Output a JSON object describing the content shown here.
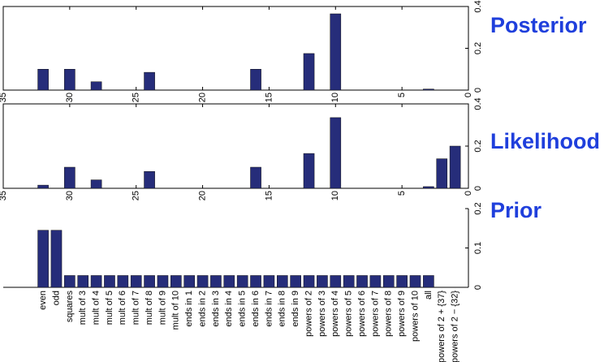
{
  "chart_data": [
    {
      "type": "bar",
      "title": "Posterior",
      "title_color": "#1f3fdc",
      "color": "#262d7a",
      "x": [
        32,
        31,
        30,
        29,
        28,
        27,
        26,
        25,
        24,
        23,
        22,
        21,
        20,
        19,
        18,
        17,
        16,
        15,
        14,
        13,
        12,
        11,
        10,
        9,
        8,
        7,
        6,
        5,
        4,
        3,
        2,
        1
      ],
      "values": [
        0.1,
        0,
        0.1,
        0,
        0.04,
        0,
        0,
        0,
        0.085,
        0,
        0,
        0,
        0,
        0,
        0,
        0,
        0.1,
        0,
        0,
        0,
        0.175,
        0,
        0.365,
        0,
        0,
        0,
        0,
        0,
        0,
        0.005,
        0,
        0
      ],
      "xlim": [
        35,
        0
      ],
      "xticks": [
        35,
        30,
        25,
        20,
        15,
        10,
        5,
        0
      ],
      "ylim": [
        0,
        0.4
      ],
      "yticks": [
        0,
        0.2,
        0.4
      ]
    },
    {
      "type": "bar",
      "title": "Likelihood",
      "title_color": "#1f3fdc",
      "color": "#262d7a",
      "x": [
        32,
        31,
        30,
        29,
        28,
        27,
        26,
        25,
        24,
        23,
        22,
        21,
        20,
        19,
        18,
        17,
        16,
        15,
        14,
        13,
        12,
        11,
        10,
        9,
        8,
        7,
        6,
        5,
        4,
        3,
        2,
        1
      ],
      "values": [
        0.015,
        0,
        0.1,
        0,
        0.04,
        0,
        0,
        0,
        0.08,
        0,
        0,
        0,
        0,
        0,
        0,
        0,
        0.1,
        0,
        0,
        0,
        0.165,
        0,
        0.335,
        0,
        0,
        0,
        0,
        0,
        0,
        0.008,
        0.14,
        0.2
      ],
      "xlim": [
        35,
        0
      ],
      "xticks": [
        35,
        30,
        25,
        20,
        15,
        10,
        5,
        0
      ],
      "ylim": [
        0,
        0.4
      ],
      "yticks": [
        0,
        0.2,
        0.4
      ]
    },
    {
      "type": "bar",
      "title": "Prior",
      "title_color": "#1f3fdc",
      "color": "#262d7a",
      "categories": [
        "even",
        "odd",
        "squares",
        "mult of 3",
        "mult of 4",
        "mult of 5",
        "mult of 6",
        "mult of 7",
        "mult of 8",
        "mult of 9",
        "mult of 10",
        "ends in 1",
        "ends in 2",
        "ends in 3",
        "ends in 4",
        "ends in 5",
        "ends in 6",
        "ends in 7",
        "ends in 8",
        "ends in 9",
        "powers of 2",
        "powers of 3",
        "powers of 4",
        "powers of 5",
        "powers of 6",
        "powers of 7",
        "powers of 8",
        "powers of 9",
        "powers of 10",
        "all",
        "powers of 2 + {37}",
        "powers of 2 − {32}"
      ],
      "values": [
        0.145,
        0.145,
        0.03,
        0.03,
        0.03,
        0.03,
        0.03,
        0.03,
        0.03,
        0.03,
        0.03,
        0.03,
        0.03,
        0.03,
        0.03,
        0.03,
        0.03,
        0.03,
        0.03,
        0.03,
        0.03,
        0.03,
        0.03,
        0.03,
        0.03,
        0.03,
        0.03,
        0.03,
        0.03,
        0.03,
        0,
        0
      ],
      "ylim": [
        0,
        0.2
      ],
      "yticks": [
        0,
        0.1,
        0.2
      ]
    }
  ]
}
